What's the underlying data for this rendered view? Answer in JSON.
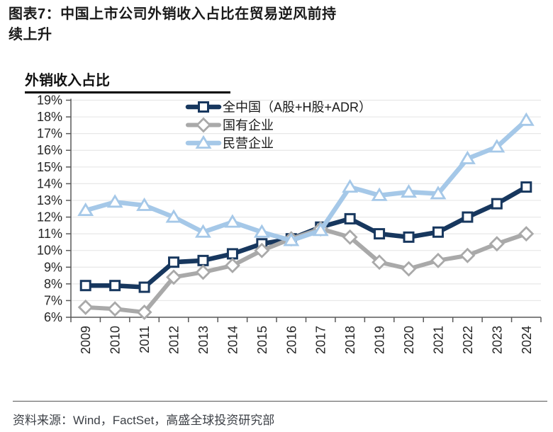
{
  "header": {
    "title": "图表7：中国上市公司外销收入占比在贸易逆风前持续上升"
  },
  "footer": {
    "source": "资料来源：Wind，FactSet，高盛全球投资研究部"
  },
  "chart_data": {
    "type": "line",
    "title": "外销收入占比",
    "x": [
      "2009",
      "2010",
      "2011",
      "2012",
      "2013",
      "2014",
      "2015",
      "2016",
      "2017",
      "2018",
      "2019",
      "2020",
      "2021",
      "2022",
      "2023",
      "2024"
    ],
    "ylabel_format": "percent",
    "ylim": [
      6,
      19
    ],
    "ytick_step": 1,
    "ytick_labels": [
      "6%",
      "7%",
      "8%",
      "9%",
      "10%",
      "11%",
      "12%",
      "13%",
      "14%",
      "15%",
      "16%",
      "17%",
      "18%",
      "19%"
    ],
    "grid": "horizontal",
    "legend_position": "top-inside",
    "axis_color": "#595959",
    "grid_color": "#e7e7e7",
    "tick_label_color": "#262626",
    "series": [
      {
        "name": "全中国（A股+H股+ADR）",
        "marker": "square",
        "color": "#17375E",
        "values": [
          7.9,
          7.9,
          7.8,
          9.3,
          9.4,
          9.8,
          10.4,
          10.7,
          11.4,
          11.9,
          11.0,
          10.8,
          11.1,
          12.0,
          12.8,
          13.8
        ]
      },
      {
        "name": "国有企业",
        "marker": "diamond",
        "color": "#A9A9A9",
        "values": [
          6.6,
          6.5,
          6.3,
          8.4,
          8.7,
          9.1,
          10.0,
          10.7,
          11.3,
          10.8,
          9.3,
          8.9,
          9.4,
          9.7,
          10.4,
          11.0
        ]
      },
      {
        "name": "民营企业",
        "marker": "triangle",
        "color": "#A5C8E8",
        "values": [
          12.4,
          12.9,
          12.7,
          12.0,
          11.1,
          11.7,
          11.1,
          10.6,
          11.2,
          13.8,
          13.3,
          13.5,
          13.4,
          15.5,
          16.2,
          17.8
        ]
      }
    ]
  }
}
